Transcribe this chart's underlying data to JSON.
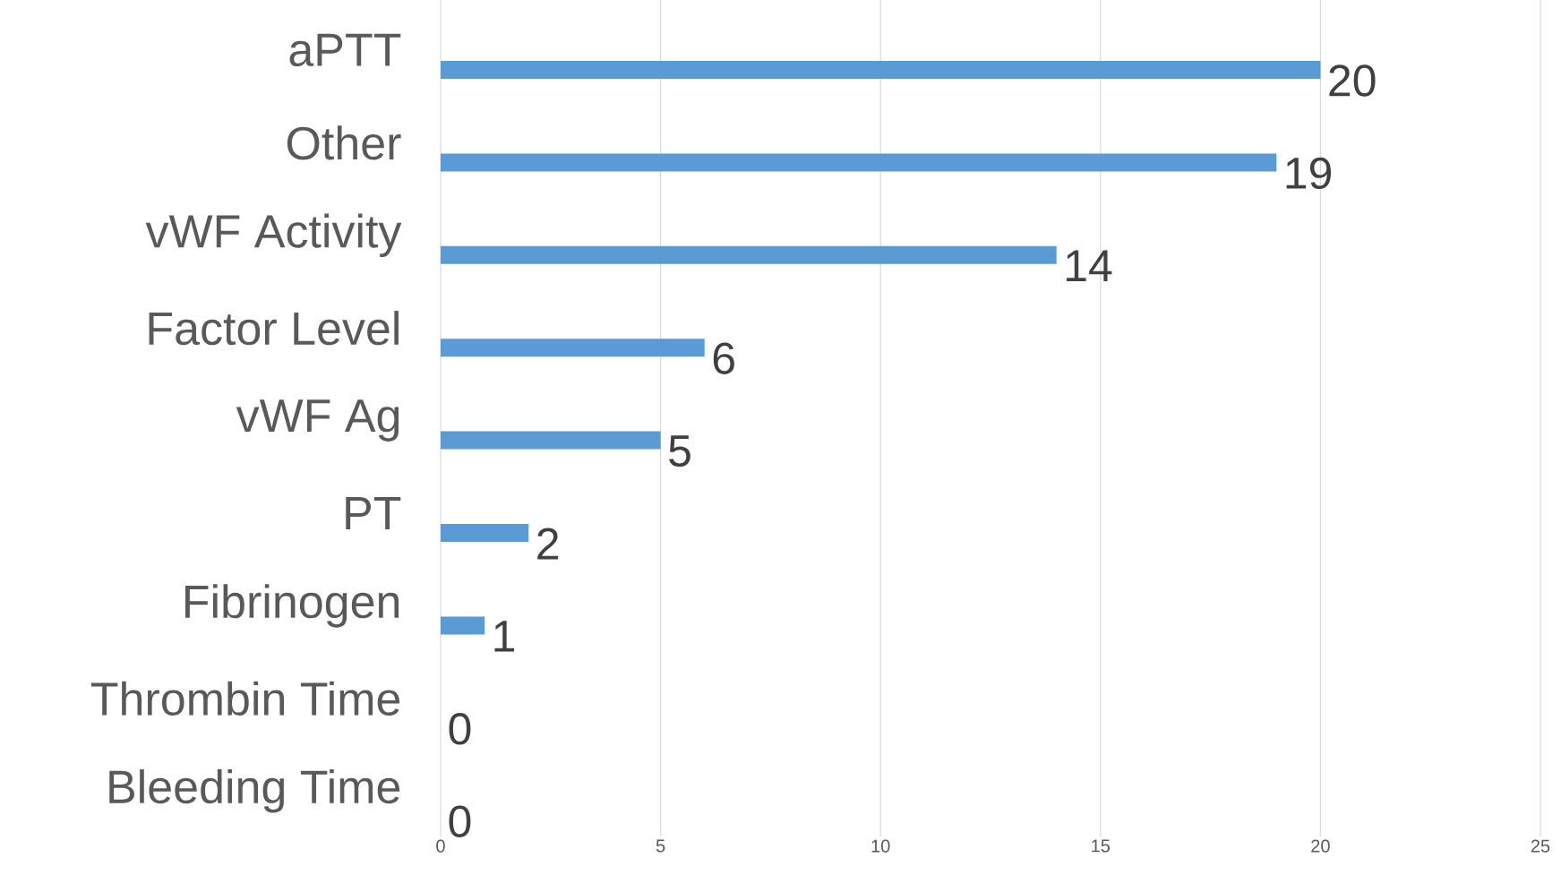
{
  "chart_data": {
    "type": "bar",
    "orientation": "horizontal",
    "categories": [
      "aPTT",
      "Other",
      "vWF Activity",
      "Factor Level",
      "vWF Ag",
      "PT",
      "Fibrinogen",
      "Thrombin Time",
      "Bleeding Time"
    ],
    "values": [
      20,
      19,
      14,
      6,
      5,
      2,
      1,
      0,
      0
    ],
    "color": "#5b9bd5",
    "xlim": [
      0,
      25
    ],
    "xticks": [
      0,
      5,
      10,
      15,
      20,
      25
    ],
    "grid": "x",
    "data_labels": true
  }
}
